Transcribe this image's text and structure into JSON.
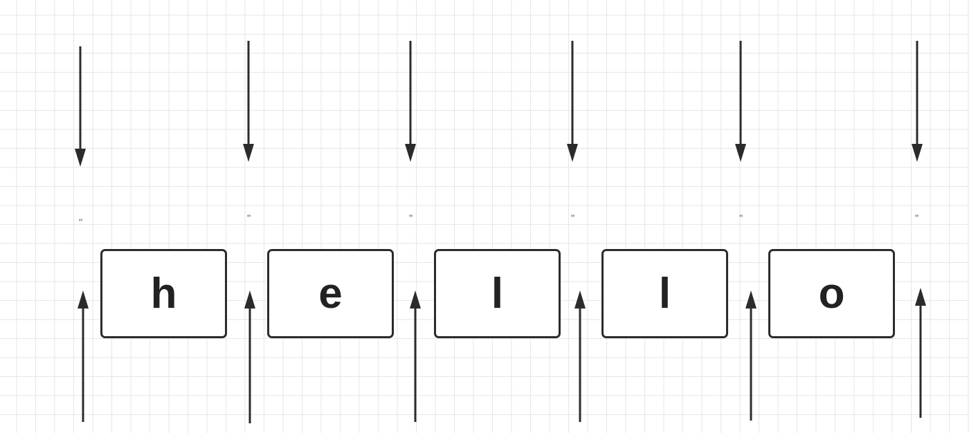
{
  "diagram": {
    "characters": [
      "h",
      "e",
      "l",
      "l",
      "o"
    ],
    "empty_string_mark": "''",
    "gap_count": 6
  },
  "colors": {
    "stroke": "#2b2b2b",
    "text": "#222222",
    "grid": "#e6e6e6",
    "background": "#ffffff"
  }
}
